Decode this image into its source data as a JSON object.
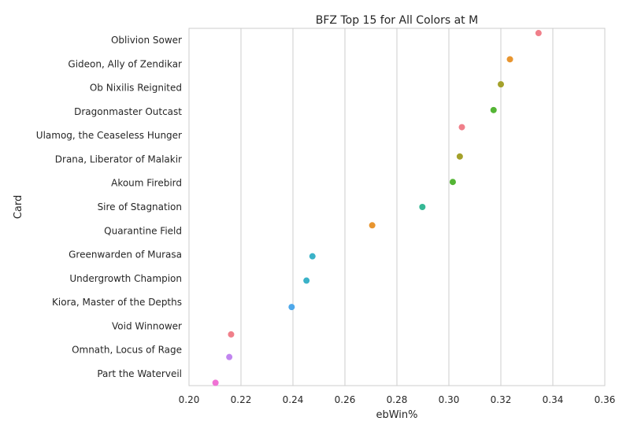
{
  "chart_data": {
    "type": "scatter",
    "title": "BFZ Top 15 for All Colors at M",
    "xlabel": "ebWin%",
    "ylabel": "Card",
    "xlim": [
      0.2,
      0.36
    ],
    "xticks": [
      "0.20",
      "0.22",
      "0.24",
      "0.26",
      "0.28",
      "0.30",
      "0.32",
      "0.34",
      "0.36"
    ],
    "grid": "vertical",
    "categories": [
      "Oblivion Sower",
      "Gideon, Ally of Zendikar",
      "Ob Nixilis Reignited",
      "Dragonmaster Outcast",
      "Ulamog, the Ceaseless Hunger",
      "Drana, Liberator of Malakir",
      "Akoum Firebird",
      "Sire of Stagnation",
      "Quarantine Field",
      "Greenwarden of Murasa",
      "Undergrowth Champion",
      "Kiora, Master of the Depths",
      "Void Winnower",
      "Omnath, Locus of Rage",
      "Part the Waterveil"
    ],
    "points": [
      {
        "x": 0.3345,
        "color": "#f07f8a"
      },
      {
        "x": 0.3235,
        "color": "#e8952f"
      },
      {
        "x": 0.32,
        "color": "#a4a12b"
      },
      {
        "x": 0.3172,
        "color": "#54b535"
      },
      {
        "x": 0.305,
        "color": "#f07f8a"
      },
      {
        "x": 0.3042,
        "color": "#a4a12b"
      },
      {
        "x": 0.3015,
        "color": "#54b535"
      },
      {
        "x": 0.2898,
        "color": "#36b895"
      },
      {
        "x": 0.2705,
        "color": "#e8952f"
      },
      {
        "x": 0.2475,
        "color": "#3ab2c8"
      },
      {
        "x": 0.2452,
        "color": "#3ab2c8"
      },
      {
        "x": 0.2395,
        "color": "#4ea8ea"
      },
      {
        "x": 0.2162,
        "color": "#f07f8a"
      },
      {
        "x": 0.2155,
        "color": "#c185ef"
      },
      {
        "x": 0.2102,
        "color": "#f072d5"
      }
    ],
    "y_jitter": [
      -0.3,
      -0.2,
      -0.15,
      -0.07,
      -0.35,
      -0.12,
      -0.05,
      0.0,
      -0.23,
      0.07,
      0.09,
      0.2,
      0.35,
      0.3,
      0.38
    ]
  }
}
